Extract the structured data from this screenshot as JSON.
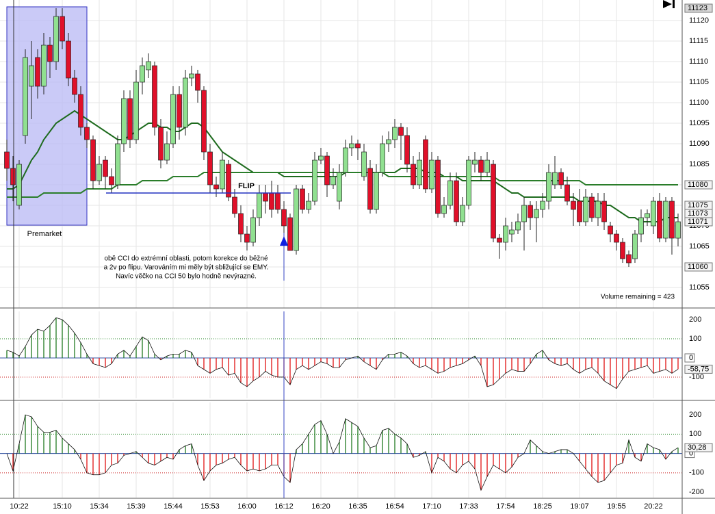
{
  "chart_data": [
    {
      "type": "candlestick",
      "categories": [
        null,
        null,
        "10:22",
        null,
        null,
        null,
        null,
        null,
        null,
        "15:10",
        null,
        null,
        null,
        null,
        null,
        "15:34",
        null,
        null,
        null,
        null,
        null,
        "15:39",
        null,
        null,
        null,
        null,
        null,
        "15:44",
        null,
        null,
        null,
        null,
        null,
        "15:53",
        null,
        null,
        null,
        null,
        null,
        "16:00",
        null,
        null,
        null,
        null,
        null,
        "16:12",
        null,
        null,
        null,
        null,
        null,
        "16:20",
        null,
        null,
        null,
        null,
        null,
        "16:35",
        null,
        null,
        null,
        null,
        null,
        "16:54",
        null,
        null,
        null,
        null,
        null,
        "17:10",
        null,
        null,
        null,
        null,
        null,
        "17:33",
        null,
        null,
        null,
        null,
        null,
        "17:54",
        null,
        null,
        null,
        null,
        null,
        "18:25",
        null,
        null,
        null,
        null,
        null,
        "19:07",
        null,
        null,
        null,
        null,
        null,
        "19:55",
        null,
        null,
        null,
        null,
        null,
        "20:22",
        null,
        null,
        null,
        null
      ],
      "open": [
        11088,
        11084,
        11075,
        11092,
        11104,
        11111,
        11104,
        11114,
        11110,
        11121,
        11115,
        11106,
        11102,
        11094,
        11091,
        11081,
        11086,
        11082,
        11080,
        11090,
        11101,
        11091,
        11105,
        11108,
        11109,
        11094,
        11086,
        11090,
        11102,
        11094,
        11106,
        11107,
        11103,
        11088,
        11080,
        11079,
        11085,
        11077,
        11073,
        11068,
        11066,
        11072,
        11078,
        11078,
        11078,
        11074,
        11072,
        11064,
        11079,
        11074,
        11076,
        11086,
        11087,
        11080,
        11076,
        11083,
        11089,
        11090,
        11082,
        11084,
        11074,
        11083,
        11090,
        11091,
        11094,
        11092,
        11085,
        11080,
        11091,
        11079,
        11086,
        11073,
        11075,
        11081,
        11071,
        11075,
        11085,
        11086,
        11083,
        11085,
        11067,
        11066,
        11068,
        11069,
        11071,
        11075,
        11072,
        11074,
        11076,
        11080,
        11083,
        11080,
        11076,
        11076,
        11071,
        11077,
        11072,
        11076,
        11070,
        11068,
        11066,
        11063,
        11062,
        11068,
        11072,
        11070,
        11076,
        11067,
        11076,
        11067
      ],
      "high": [
        11091,
        11087,
        11086,
        11113,
        11115,
        11113,
        11117,
        11116,
        11123,
        11123,
        11117,
        11108,
        11104,
        11095,
        11092,
        11087,
        11087,
        11084,
        11092,
        11103,
        11103,
        11108,
        11111,
        11112,
        11110,
        11096,
        11093,
        11104,
        11104,
        11108,
        11109,
        11108,
        11104,
        11090,
        11082,
        11088,
        11086,
        11079,
        11075,
        11070,
        11074,
        11080,
        11080,
        11081,
        11080,
        11076,
        11073,
        11080,
        11080,
        11078,
        11088,
        11089,
        11088,
        11084,
        11085,
        11091,
        11092,
        11091,
        11090,
        11086,
        11085,
        11092,
        11093,
        11096,
        11095,
        11094,
        11087,
        11088,
        11092,
        11088,
        11087,
        11077,
        11083,
        11083,
        11077,
        11087,
        11088,
        11087,
        11088,
        11086,
        11068,
        11072,
        11071,
        11073,
        11077,
        11076,
        11076,
        11078,
        11085,
        11087,
        11084,
        11082,
        11078,
        11079,
        11079,
        11078,
        11078,
        11078,
        11071,
        11069,
        11067,
        11064,
        11069,
        11074,
        11074,
        11077,
        11078,
        11077,
        11077,
        11073
      ],
      "low": [
        11081,
        11076,
        11074,
        11090,
        11096,
        11101,
        11102,
        11106,
        11108,
        11113,
        11104,
        11100,
        11092,
        11089,
        11079,
        11080,
        11079,
        11078,
        11079,
        11088,
        11089,
        11090,
        11102,
        11106,
        11092,
        11084,
        11085,
        11089,
        11091,
        11092,
        11104,
        11100,
        11086,
        11078,
        11077,
        11078,
        11076,
        11072,
        11066,
        11064,
        11065,
        11070,
        11073,
        11072,
        11073,
        11067,
        11064,
        11063,
        11073,
        11073,
        11075,
        11085,
        11077,
        11079,
        11074,
        11082,
        11087,
        11086,
        11081,
        11073,
        11073,
        11082,
        11088,
        11089,
        11086,
        11083,
        11079,
        11079,
        11078,
        11078,
        11072,
        11072,
        11074,
        11070,
        11070,
        11074,
        11083,
        11081,
        11082,
        11066,
        11062,
        11064,
        11066,
        11068,
        11064,
        11069,
        11066,
        11072,
        11074,
        11079,
        11079,
        11075,
        11070,
        11070,
        11070,
        11071,
        11070,
        11069,
        11066,
        11064,
        11061,
        11060,
        11061,
        11066,
        11070,
        11068,
        11066,
        11066,
        11063,
        11065
      ],
      "close": [
        11084,
        11080,
        11085,
        11111,
        11109,
        11104,
        11114,
        11110,
        11121,
        11115,
        11106,
        11102,
        11094,
        11091,
        11081,
        11085,
        11082,
        11080,
        11090,
        11101,
        11091,
        11105,
        11109,
        11110,
        11094,
        11086,
        11090,
        11102,
        11094,
        11106,
        11107,
        11103,
        11088,
        11080,
        11079,
        11086,
        11077,
        11073,
        11068,
        11066,
        11072,
        11078,
        11076,
        11074,
        11074,
        11070,
        11064,
        11079,
        11074,
        11076,
        11086,
        11087,
        11080,
        11082,
        11083,
        11089,
        11090,
        11089,
        11088,
        11074,
        11083,
        11090,
        11091,
        11094,
        11092,
        11085,
        11080,
        11086,
        11079,
        11086,
        11073,
        11075,
        11081,
        11071,
        11075,
        11086,
        11086,
        11083,
        11086,
        11067,
        11066,
        11070,
        11069,
        11071,
        11075,
        11072,
        11074,
        11076,
        11083,
        11083,
        11080,
        11076,
        11074,
        11071,
        11077,
        11072,
        11076,
        11071,
        11068,
        11066,
        11062,
        11061,
        11068,
        11072,
        11073,
        11076,
        11067,
        11076,
        11067,
        11071
      ],
      "up_color": "#90e090",
      "down_color": "#e0102a",
      "series": [
        {
          "color": "#1e6b1e",
          "values": [
            11079,
            11079,
            11080,
            11083,
            11086,
            11088,
            11091,
            11093,
            11095,
            11096,
            11097,
            11098,
            11097,
            11096,
            11095,
            11094,
            11093,
            11092,
            11091,
            11091,
            11092,
            11093,
            11094,
            11095,
            11095,
            11094,
            11094,
            11093,
            11093,
            11094,
            11095,
            11095,
            11094,
            11092,
            11090,
            11088,
            11087,
            11086,
            11085,
            11084,
            11083,
            11083,
            11083,
            11083,
            11083,
            11082,
            11082,
            11082,
            11082,
            11082,
            11082,
            11082,
            11082,
            11082,
            11082,
            11083,
            11083,
            11083,
            11083,
            11083,
            11083,
            11083,
            11083,
            11083,
            11084,
            11084,
            11084,
            11084,
            11083,
            11083,
            11083,
            11082,
            11082,
            11082,
            11081,
            11081,
            11081,
            11081,
            11081,
            11081,
            11080,
            11079,
            11078,
            11078,
            11077,
            11077,
            11077,
            11077,
            11077,
            11077,
            11077,
            11077,
            11077,
            11076,
            11076,
            11076,
            11076,
            11075,
            11075,
            11074,
            11073,
            11072,
            11072,
            11071,
            11071,
            11071,
            11071,
            11072,
            11072,
            11072
          ]
        },
        {
          "color": "#2a7d2a",
          "values": [
            11077,
            11077,
            11077,
            11077,
            11077,
            11077,
            11078,
            11078,
            11078,
            11078,
            11078,
            11078,
            11078,
            11079,
            11079,
            11079,
            11079,
            11079,
            11080,
            11080,
            11080,
            11080,
            11081,
            11081,
            11081,
            11081,
            11081,
            11082,
            11082,
            11082,
            11082,
            11082,
            11083,
            11083,
            11083,
            11083,
            11083,
            11083,
            11083,
            11083,
            11083,
            11083,
            11083,
            11083,
            11083,
            11083,
            11083,
            11083,
            11083,
            11083,
            11083,
            11083,
            11083,
            11083,
            11083,
            11083,
            11083,
            11083,
            11083,
            11083,
            11083,
            11083,
            11082,
            11082,
            11082,
            11082,
            11082,
            11082,
            11082,
            11082,
            11082,
            11082,
            11082,
            11082,
            11082,
            11082,
            11082,
            11082,
            11082,
            11082,
            11081,
            11081,
            11081,
            11081,
            11081,
            11081,
            11081,
            11081,
            11081,
            11081,
            11081,
            11081,
            11081,
            11081,
            11080,
            11080,
            11080,
            11080,
            11080,
            11080,
            11080,
            11080,
            11080,
            11080,
            11080,
            11080,
            11080,
            11080,
            11080,
            11080
          ]
        }
      ],
      "ylim": [
        11050,
        11125
      ],
      "yticks": [
        11055,
        11060,
        11065,
        11070,
        11075,
        11080,
        11085,
        11090,
        11095,
        11100,
        11105,
        11110,
        11115,
        11120
      ],
      "price_labels": [
        11123,
        11080,
        11075,
        11073,
        11071,
        11060
      ],
      "flip_level": 11078,
      "premarket_label": "Premarket",
      "flip_label": "FLIP",
      "note": [
        "obě CCI do extrémní oblasti, potom korekce do běžné",
        "a 2v po flipu. Varováním mi měly být sbližující se EMY.",
        "Navíc věčko na CCI 50 bylo hodně nevýrazné."
      ],
      "volume_label": "Volume remaining = 423",
      "grid": true
    },
    {
      "type": "cci",
      "values": [
        40,
        30,
        10,
        60,
        120,
        150,
        140,
        170,
        210,
        200,
        170,
        130,
        80,
        20,
        -30,
        -40,
        -50,
        -30,
        20,
        40,
        10,
        60,
        110,
        90,
        20,
        -10,
        10,
        20,
        20,
        40,
        30,
        -40,
        -60,
        -80,
        -60,
        -50,
        -90,
        -80,
        -130,
        -150,
        -120,
        -100,
        -70,
        -90,
        -100,
        -100,
        -140,
        -60,
        -40,
        -60,
        -40,
        -20,
        -30,
        -50,
        -50,
        -10,
        0,
        10,
        -20,
        -40,
        -60,
        -10,
        20,
        20,
        30,
        10,
        -30,
        -50,
        -40,
        -60,
        -80,
        -70,
        -50,
        -40,
        -30,
        -10,
        10,
        -40,
        -150,
        -140,
        -110,
        -80,
        -60,
        -70,
        -70,
        -30,
        20,
        40,
        -10,
        -30,
        -40,
        -30,
        -60,
        -80,
        -60,
        -50,
        -80,
        -120,
        -140,
        -160,
        -110,
        -70,
        -60,
        -50,
        -40,
        -80,
        -70,
        -60,
        -80,
        -58.75
      ],
      "last_label": {
        "value": -58.75,
        "label": "-58,75"
      },
      "ylim": [
        -211,
        243
      ],
      "yticks": [
        200,
        100,
        0,
        -100
      ],
      "levels": [
        {
          "value": 100,
          "color": "#2a8a2a"
        },
        {
          "value": -100,
          "color": "#cc2222"
        }
      ],
      "up_color": "#1f7a1f",
      "down_color": "#e01010"
    },
    {
      "type": "cci",
      "values": [
        0,
        -90,
        50,
        200,
        190,
        140,
        110,
        110,
        120,
        80,
        50,
        20,
        -30,
        -100,
        -110,
        -110,
        -100,
        -60,
        -50,
        -10,
        0,
        10,
        -20,
        -50,
        -60,
        -40,
        -20,
        -30,
        20,
        40,
        50,
        -60,
        -140,
        -90,
        -60,
        -50,
        -30,
        -20,
        -60,
        -90,
        -80,
        -90,
        -80,
        -60,
        -60,
        -120,
        -150,
        20,
        50,
        100,
        150,
        170,
        100,
        0,
        60,
        180,
        160,
        140,
        80,
        30,
        40,
        120,
        130,
        100,
        80,
        50,
        -20,
        -10,
        10,
        -100,
        -20,
        -40,
        -80,
        -100,
        -60,
        -40,
        -80,
        -190,
        -120,
        -60,
        -80,
        -100,
        -70,
        -20,
        0,
        70,
        40,
        10,
        0,
        10,
        20,
        20,
        0,
        -40,
        -80,
        -120,
        -150,
        -140,
        -100,
        -60,
        -50,
        70,
        -20,
        -40,
        50,
        30,
        20,
        -30,
        10,
        30.28
      ],
      "last_label": {
        "value": 30.28,
        "label": "30,28"
      },
      "ylim": [
        -228,
        264
      ],
      "yticks": [
        200,
        100,
        0,
        -100,
        -200
      ],
      "levels": [
        {
          "value": 100,
          "color": "#2a8a2a"
        },
        {
          "value": -100,
          "color": "#cc2222"
        }
      ],
      "up_color": "#1f7a1f",
      "down_color": "#e01010"
    }
  ]
}
